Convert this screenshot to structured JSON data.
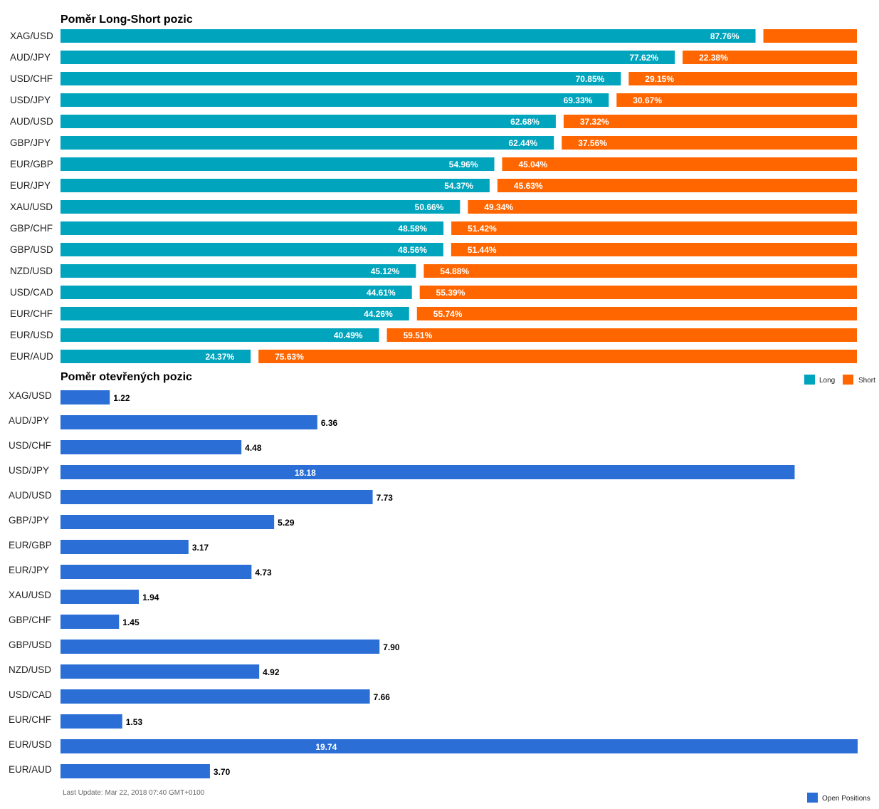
{
  "colors": {
    "long": "#00A5BD",
    "short": "#FF6600",
    "open": "#2B6FD6"
  },
  "footer": {
    "last_update": "Last Update: Mar 22, 2018 07:40 GMT+0100"
  },
  "legends": {
    "ratio": [
      "Long",
      "Short"
    ],
    "open": [
      "Open Positions"
    ]
  },
  "chart_data": [
    {
      "type": "bar",
      "orientation": "horizontal",
      "stacked": true,
      "title": "Poměr Long-Short pozic",
      "categories": [
        "XAG/USD",
        "AUD/JPY",
        "USD/CHF",
        "USD/JPY",
        "AUD/USD",
        "GBP/JPY",
        "EUR/GBP",
        "EUR/JPY",
        "XAU/USD",
        "GBP/CHF",
        "GBP/USD",
        "NZD/USD",
        "USD/CAD",
        "EUR/CHF",
        "EUR/USD",
        "EUR/AUD"
      ],
      "series": [
        {
          "name": "Long",
          "values": [
            87.76,
            77.62,
            70.85,
            69.33,
            62.68,
            62.44,
            54.96,
            54.37,
            50.66,
            48.58,
            48.56,
            45.12,
            44.61,
            44.26,
            40.49,
            24.37
          ],
          "labels": [
            "87.76%",
            "77.62%",
            "70.85%",
            "69.33%",
            "62.68%",
            "62.44%",
            "54.96%",
            "54.37%",
            "50.66%",
            "48.58%",
            "48.56%",
            "45.12%",
            "44.61%",
            "44.26%",
            "40.49%",
            "24.37%"
          ]
        },
        {
          "name": "Short",
          "values": [
            12.24,
            22.38,
            29.15,
            30.67,
            37.32,
            37.56,
            45.04,
            45.63,
            49.34,
            51.42,
            51.44,
            54.88,
            55.39,
            55.74,
            59.51,
            75.63
          ],
          "labels": [
            "",
            "22.38%",
            "29.15%",
            "30.67%",
            "37.32%",
            "37.56%",
            "45.04%",
            "45.63%",
            "49.34%",
            "51.42%",
            "51.44%",
            "54.88%",
            "55.39%",
            "55.74%",
            "59.51%",
            "75.63%"
          ]
        }
      ],
      "xlim": [
        0,
        100
      ],
      "legend_position": "bottom-right"
    },
    {
      "type": "bar",
      "orientation": "horizontal",
      "title": "Poměr otevřených pozic",
      "categories": [
        "XAG/USD",
        "AUD/JPY",
        "USD/CHF",
        "USD/JPY",
        "AUD/USD",
        "GBP/JPY",
        "EUR/GBP",
        "EUR/JPY",
        "XAU/USD",
        "GBP/CHF",
        "GBP/USD",
        "NZD/USD",
        "USD/CAD",
        "EUR/CHF",
        "EUR/USD",
        "EUR/AUD"
      ],
      "series": [
        {
          "name": "Open Positions",
          "values": [
            1.22,
            6.36,
            4.48,
            18.18,
            7.73,
            5.29,
            3.17,
            4.73,
            1.94,
            1.45,
            7.9,
            4.92,
            7.66,
            1.53,
            19.74,
            3.7
          ],
          "labels": [
            "1.22",
            "6.36",
            "4.48",
            "18.18",
            "7.73",
            "5.29",
            "3.17",
            "4.73",
            "1.94",
            "1.45",
            "7.90",
            "4.92",
            "7.66",
            "1.53",
            "19.74",
            "3.70"
          ]
        }
      ],
      "xlim": [
        0,
        19.74
      ],
      "legend_position": "bottom-right"
    }
  ]
}
